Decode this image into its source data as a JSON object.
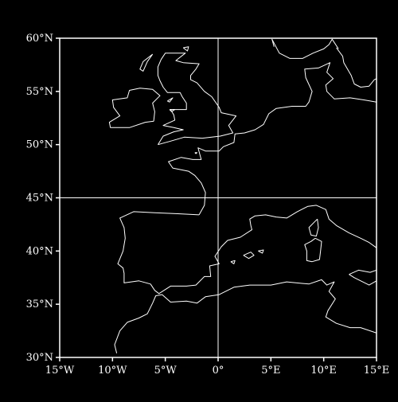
{
  "map": {
    "projection": "plate-carree",
    "background_color": "#000000",
    "line_color": "#ffffff",
    "extent": {
      "lon_min": -15,
      "lon_max": 15,
      "lat_min": 30,
      "lat_max": 60
    },
    "reference_lines": {
      "meridian_lon": 0,
      "parallel_lat": 45
    },
    "lat_ticks": [
      {
        "value": 30,
        "label": "30°N"
      },
      {
        "value": 35,
        "label": "35°N"
      },
      {
        "value": 40,
        "label": "40°N"
      },
      {
        "value": 45,
        "label": "45°N"
      },
      {
        "value": 50,
        "label": "50°N"
      },
      {
        "value": 55,
        "label": "55°N"
      },
      {
        "value": 60,
        "label": "60°N"
      }
    ],
    "lon_ticks": [
      {
        "value": -15,
        "label": "15°W"
      },
      {
        "value": -10,
        "label": "10°W"
      },
      {
        "value": -5,
        "label": "5°W"
      },
      {
        "value": 0,
        "label": "0°"
      },
      {
        "value": 5,
        "label": "5°E"
      },
      {
        "value": 10,
        "label": "10°E"
      },
      {
        "value": 15,
        "label": "15°E"
      }
    ],
    "coastlines": [
      {
        "name": "iberia-coast",
        "points": [
          [
            -1.8,
            43.4
          ],
          [
            -3.8,
            43.5
          ],
          [
            -6,
            43.6
          ],
          [
            -8,
            43.7
          ],
          [
            -9.3,
            43.1
          ],
          [
            -8.9,
            42.2
          ],
          [
            -8.8,
            41.2
          ],
          [
            -9,
            40
          ],
          [
            -9.5,
            38.8
          ],
          [
            -9,
            38.4
          ],
          [
            -8.9,
            37.9
          ],
          [
            -8.9,
            37
          ],
          [
            -7.5,
            37.2
          ],
          [
            -6.4,
            36.9
          ],
          [
            -6,
            36.3
          ],
          [
            -5.6,
            36
          ],
          [
            -4.5,
            36.7
          ],
          [
            -3,
            36.7
          ],
          [
            -2.1,
            36.8
          ],
          [
            -1.3,
            37.6
          ],
          [
            -0.7,
            37.6
          ],
          [
            -0.8,
            38.6
          ],
          [
            0.1,
            38.8
          ],
          [
            -0.3,
            39.5
          ],
          [
            0.3,
            40.4
          ],
          [
            0.9,
            41
          ],
          [
            2.1,
            41.3
          ],
          [
            3.2,
            42
          ],
          [
            3.1,
            42.4
          ],
          [
            3,
            43
          ],
          [
            3.5,
            43.3
          ],
          [
            4.5,
            43.4
          ],
          [
            5.5,
            43.2
          ],
          [
            6.5,
            43.1
          ],
          [
            7.5,
            43.7
          ],
          [
            8.5,
            44.2
          ],
          [
            9.3,
            44.3
          ],
          [
            10.2,
            43.9
          ],
          [
            10.5,
            43
          ],
          [
            11.2,
            42.4
          ],
          [
            12.4,
            41.7
          ],
          [
            13.5,
            41.2
          ],
          [
            14.3,
            40.8
          ],
          [
            15,
            40.3
          ]
        ]
      },
      {
        "name": "atlantic-france-coast",
        "points": [
          [
            -1.8,
            43.4
          ],
          [
            -1.3,
            44.3
          ],
          [
            -1.2,
            45.5
          ],
          [
            -1.6,
            46.4
          ],
          [
            -2.2,
            47.1
          ],
          [
            -2.8,
            47.5
          ],
          [
            -4.3,
            47.8
          ],
          [
            -4.7,
            48.4
          ],
          [
            -3.5,
            48.8
          ],
          [
            -2.4,
            48.6
          ],
          [
            -1.6,
            48.6
          ],
          [
            -1.9,
            49.7
          ],
          [
            -1.2,
            49.4
          ],
          [
            0.1,
            49.4
          ],
          [
            0.5,
            49.8
          ],
          [
            1.5,
            50.2
          ],
          [
            1.6,
            51
          ],
          [
            2.5,
            51.1
          ],
          [
            3.5,
            51.4
          ],
          [
            4.3,
            51.9
          ],
          [
            4.8,
            52.9
          ],
          [
            5.5,
            53.4
          ],
          [
            7,
            53.6
          ],
          [
            8.3,
            53.6
          ],
          [
            8.6,
            54
          ],
          [
            8.9,
            55
          ],
          [
            8.3,
            56.3
          ],
          [
            8.2,
            57.1
          ],
          [
            9.5,
            57.2
          ],
          [
            10.6,
            57.7
          ],
          [
            10.3,
            56.8
          ],
          [
            10.9,
            56.2
          ],
          [
            10.2,
            55.6
          ],
          [
            10.3,
            55
          ],
          [
            11,
            54.3
          ],
          [
            12.5,
            54.4
          ],
          [
            13.8,
            54.2
          ],
          [
            15,
            54
          ]
        ]
      },
      {
        "name": "great-britain-coast",
        "points": [
          [
            -5.7,
            50
          ],
          [
            -4.6,
            50.3
          ],
          [
            -3.2,
            50.7
          ],
          [
            -1.5,
            50.6
          ],
          [
            0.2,
            50.8
          ],
          [
            1.4,
            51.1
          ],
          [
            1,
            51.8
          ],
          [
            1.7,
            52.7
          ],
          [
            0.3,
            53
          ],
          [
            0.1,
            53.5
          ],
          [
            -0.6,
            54.5
          ],
          [
            -1.3,
            55
          ],
          [
            -2,
            55.8
          ],
          [
            -2.6,
            56.1
          ],
          [
            -2.6,
            56.5
          ],
          [
            -2.1,
            57.1
          ],
          [
            -1.8,
            57.6
          ],
          [
            -3.3,
            57.7
          ],
          [
            -4,
            57.9
          ],
          [
            -3.1,
            58.6
          ],
          [
            -4.2,
            58.6
          ],
          [
            -5,
            58.6
          ],
          [
            -5.4,
            58
          ],
          [
            -5.7,
            57.3
          ],
          [
            -5.7,
            56.5
          ],
          [
            -5.5,
            56
          ],
          [
            -5.2,
            55.4
          ],
          [
            -4.8,
            54.9
          ],
          [
            -3.6,
            54.9
          ],
          [
            -3.4,
            54.5
          ],
          [
            -3,
            53.9
          ],
          [
            -3,
            53.3
          ],
          [
            -4.5,
            53.3
          ],
          [
            -4.2,
            52.8
          ],
          [
            -4.1,
            52.3
          ],
          [
            -5.2,
            51.8
          ],
          [
            -4.2,
            51.6
          ],
          [
            -3.3,
            51.4
          ],
          [
            -4.2,
            51.2
          ],
          [
            -5.2,
            50.8
          ],
          [
            -5.7,
            50
          ]
        ]
      },
      {
        "name": "ireland-coast",
        "points": [
          [
            -6.1,
            52.2
          ],
          [
            -6,
            53.1
          ],
          [
            -6.2,
            53.9
          ],
          [
            -5.5,
            54.6
          ],
          [
            -6.2,
            55.2
          ],
          [
            -7.4,
            55.3
          ],
          [
            -8.4,
            55.1
          ],
          [
            -8.6,
            54.4
          ],
          [
            -10,
            54.2
          ],
          [
            -9.9,
            53.5
          ],
          [
            -9.3,
            52.7
          ],
          [
            -10.3,
            52.1
          ],
          [
            -10.2,
            51.6
          ],
          [
            -8.4,
            51.6
          ],
          [
            -6.9,
            52.1
          ],
          [
            -6.1,
            52.2
          ]
        ]
      },
      {
        "name": "norway-coast",
        "points": [
          [
            5.3,
            59.2
          ],
          [
            5.1,
            59.9
          ],
          [
            5.8,
            58.6
          ],
          [
            6.8,
            58.1
          ],
          [
            8,
            58.1
          ],
          [
            9,
            58.6
          ],
          [
            10,
            59
          ],
          [
            10.5,
            59.4
          ],
          [
            10.8,
            59.9
          ],
          [
            11.4,
            59
          ]
        ]
      },
      {
        "name": "sweden-coast",
        "points": [
          [
            11.2,
            59.1
          ],
          [
            11.8,
            58.3
          ],
          [
            11.9,
            57.7
          ],
          [
            12.6,
            56.5
          ],
          [
            12.9,
            55.7
          ],
          [
            13.5,
            55.4
          ],
          [
            14.3,
            55.5
          ],
          [
            14.8,
            56.1
          ],
          [
            15,
            56.2
          ]
        ]
      },
      {
        "name": "north-africa-coast",
        "points": [
          [
            -9.6,
            30.4
          ],
          [
            -9.8,
            31.2
          ],
          [
            -9.3,
            32.5
          ],
          [
            -8.6,
            33.3
          ],
          [
            -7.5,
            33.7
          ],
          [
            -6.7,
            34.1
          ],
          [
            -6.2,
            35.1
          ],
          [
            -5.9,
            35.8
          ],
          [
            -5.3,
            35.9
          ],
          [
            -4.5,
            35.2
          ],
          [
            -3,
            35.3
          ],
          [
            -2,
            35.1
          ],
          [
            -1.2,
            35.7
          ],
          [
            0.1,
            35.9
          ],
          [
            1.5,
            36.6
          ],
          [
            3,
            36.8
          ],
          [
            5,
            36.8
          ],
          [
            6.5,
            37.1
          ],
          [
            8.6,
            36.9
          ],
          [
            9.8,
            37.3
          ],
          [
            10.3,
            36.8
          ],
          [
            11,
            37.1
          ],
          [
            10.5,
            36.2
          ],
          [
            11.1,
            35.5
          ],
          [
            10.4,
            34.4
          ],
          [
            10.2,
            33.8
          ],
          [
            11.2,
            33.2
          ],
          [
            12.5,
            32.8
          ],
          [
            13.5,
            32.8
          ],
          [
            15,
            32.3
          ]
        ]
      },
      {
        "name": "sicily-coast",
        "points": [
          [
            12.4,
            37.8
          ],
          [
            13.3,
            38.2
          ],
          [
            14.4,
            38
          ],
          [
            15,
            38.2
          ],
          [
            15,
            37.2
          ],
          [
            14.3,
            36.8
          ],
          [
            12.9,
            37.5
          ],
          [
            12.4,
            37.8
          ]
        ]
      },
      {
        "name": "corsica-coast",
        "points": [
          [
            9.4,
            43
          ],
          [
            9.5,
            42.2
          ],
          [
            9.3,
            41.4
          ],
          [
            8.8,
            41.5
          ],
          [
            8.6,
            42.2
          ],
          [
            9.1,
            42.7
          ],
          [
            9.4,
            43
          ]
        ]
      },
      {
        "name": "sardinia-coast",
        "points": [
          [
            9.2,
            41.2
          ],
          [
            9.8,
            40.9
          ],
          [
            9.7,
            40
          ],
          [
            9.6,
            39.2
          ],
          [
            8.9,
            39
          ],
          [
            8.4,
            39.1
          ],
          [
            8.4,
            40
          ],
          [
            8.2,
            40.6
          ],
          [
            8.8,
            40.9
          ],
          [
            9.2,
            41.2
          ]
        ]
      },
      {
        "name": "mallorca-coast",
        "points": [
          [
            2.4,
            39.6
          ],
          [
            3.1,
            39.9
          ],
          [
            3.4,
            39.6
          ],
          [
            2.9,
            39.3
          ],
          [
            2.4,
            39.6
          ]
        ]
      },
      {
        "name": "menorca-coast",
        "points": [
          [
            3.8,
            40
          ],
          [
            4.3,
            40.1
          ],
          [
            4.2,
            39.8
          ],
          [
            3.8,
            40
          ]
        ]
      },
      {
        "name": "ibiza-coast",
        "points": [
          [
            1.2,
            39
          ],
          [
            1.6,
            39.1
          ],
          [
            1.5,
            38.8
          ],
          [
            1.2,
            39
          ]
        ]
      },
      {
        "name": "isle-of-man-coast",
        "points": [
          [
            -4.8,
            54.1
          ],
          [
            -4.3,
            54.4
          ],
          [
            -4.6,
            54.0
          ],
          [
            -4.8,
            54.1
          ]
        ]
      },
      {
        "name": "anglesey-coast",
        "points": [
          [
            -4.6,
            53.3
          ],
          [
            -4.1,
            53.3
          ],
          [
            -4.4,
            53.1
          ],
          [
            -4.6,
            53.3
          ]
        ]
      },
      {
        "name": "outer-hebrides-coast",
        "points": [
          [
            -6.2,
            58.5
          ],
          [
            -7.1,
            57.8
          ],
          [
            -7.4,
            57.1
          ],
          [
            -7.1,
            56.9
          ],
          [
            -6.7,
            57.8
          ],
          [
            -6.2,
            58.5
          ]
        ]
      },
      {
        "name": "orkney-coast",
        "points": [
          [
            -3.3,
            59.1
          ],
          [
            -2.8,
            59.2
          ],
          [
            -2.9,
            58.8
          ],
          [
            -3.3,
            59.1
          ]
        ]
      },
      {
        "name": "jersey-coast",
        "points": [
          [
            -2.2,
            49.25
          ],
          [
            -2.0,
            49.25
          ],
          [
            -2.1,
            49.15
          ],
          [
            -2.2,
            49.25
          ]
        ]
      }
    ]
  }
}
